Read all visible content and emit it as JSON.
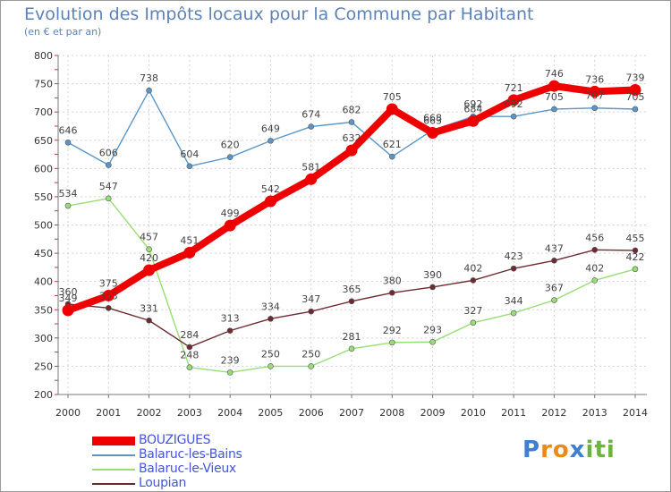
{
  "chart_data": {
    "type": "line",
    "title": "Evolution des Impôts locaux pour la Commune par Habitant",
    "subtitle": "(en € et par an)",
    "x": [
      "2000",
      "2001",
      "2002",
      "2003",
      "2004",
      "2005",
      "2006",
      "2007",
      "2008",
      "2009",
      "2010",
      "2011",
      "2012",
      "2013",
      "2014"
    ],
    "yticks": [
      200,
      250,
      300,
      350,
      400,
      450,
      500,
      550,
      600,
      650,
      700,
      750,
      800
    ],
    "ylim": [
      200,
      800
    ],
    "grid": true,
    "legend_position": "bottom-left",
    "series": [
      {
        "name": "BOUZIGUES",
        "color": "#ee0000",
        "values": [
          349,
          375,
          420,
          451,
          499,
          542,
          581,
          632,
          705,
          663,
          684,
          721,
          746,
          736,
          739
        ],
        "labels": [
          "349",
          "375",
          "420",
          "451",
          "499",
          "542",
          "581",
          "632",
          "705",
          "663",
          "684",
          "721",
          "746",
          "736",
          "739"
        ]
      },
      {
        "name": "Balaruc-les-Bains",
        "color": "#5c96c8",
        "values": [
          646,
          606,
          738,
          604,
          620,
          649,
          674,
          682,
          621,
          668,
          692,
          692,
          705,
          707,
          705
        ],
        "labels": [
          "646",
          "606",
          "738",
          "604",
          "620",
          "649",
          "674",
          "682",
          "621",
          "668",
          "692",
          "692",
          "705",
          "707",
          "705"
        ]
      },
      {
        "name": "Balaruc-le-Vieux",
        "color": "#99dd77",
        "values": [
          534,
          547,
          457,
          248,
          239,
          250,
          250,
          281,
          292,
          293,
          327,
          344,
          367,
          402,
          422
        ],
        "labels": [
          "534",
          "547",
          "457",
          "248",
          "239",
          "250",
          "250",
          "281",
          "292",
          "293",
          "327",
          "344",
          "367",
          "402",
          "422"
        ]
      },
      {
        "name": "Loupian",
        "color": "#6e2a30",
        "values": [
          360,
          353,
          331,
          284,
          313,
          334,
          347,
          365,
          380,
          390,
          402,
          423,
          437,
          456,
          455
        ],
        "labels": [
          "360",
          "353",
          "331",
          "284",
          "313",
          "334",
          "347",
          "365",
          "380",
          "390",
          "402",
          "423",
          "437",
          "456",
          "455"
        ]
      }
    ]
  },
  "logo": {
    "letters": [
      "P",
      "r",
      "o",
      "x",
      "i",
      "t",
      "i"
    ],
    "colors": [
      "#3f7fd0",
      "#e98a1d",
      "#e98a1d",
      "#3f7fd0",
      "#6cb33f",
      "#6cb33f",
      "#6cb33f"
    ]
  }
}
